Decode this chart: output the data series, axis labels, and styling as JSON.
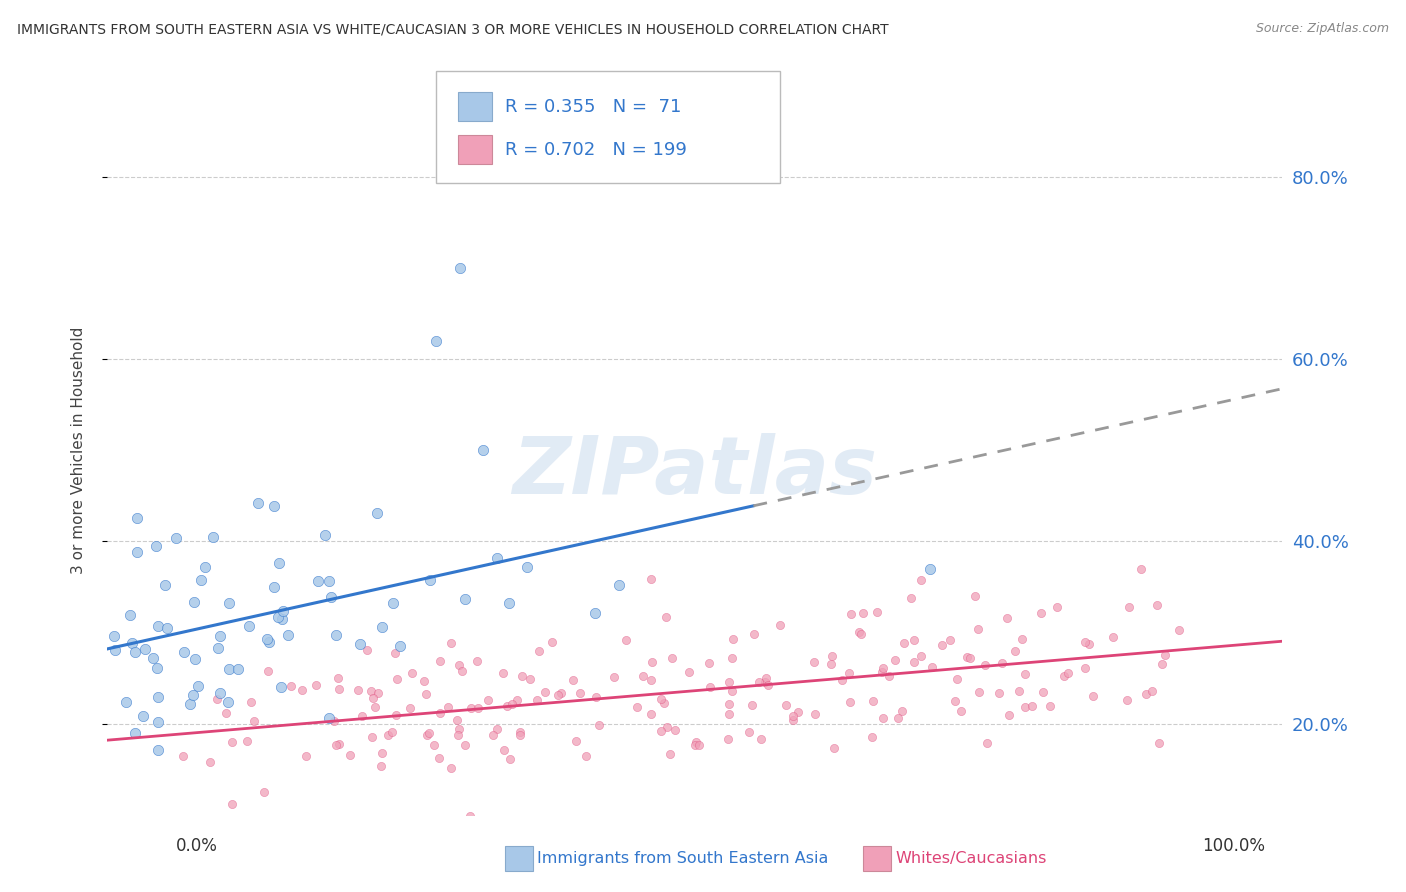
{
  "title": "IMMIGRANTS FROM SOUTH EASTERN ASIA VS WHITE/CAUCASIAN 3 OR MORE VEHICLES IN HOUSEHOLD CORRELATION CHART",
  "source": "Source: ZipAtlas.com",
  "ylabel": "3 or more Vehicles in Household",
  "legend_label1": "Immigrants from South Eastern Asia",
  "legend_label2": "Whites/Caucasians",
  "R1": 0.355,
  "N1": 71,
  "R2": 0.702,
  "N2": 199,
  "color1": "#a8c8e8",
  "color2": "#f0a0b8",
  "line_color1": "#3377cc",
  "line_color2": "#dd4477",
  "dash_color": "#999999",
  "watermark": "ZIPatlas",
  "background_color": "#ffffff",
  "grid_color": "#cccccc",
  "xlim": [
    0,
    100
  ],
  "ylim": [
    10,
    90
  ],
  "ytick_vals": [
    20,
    40,
    60,
    80
  ],
  "blue_x_start": 28.0,
  "blue_x_end": 70.0,
  "blue_y_at0": 28.0,
  "blue_slope": 0.2,
  "pink_y_at0": 19.0,
  "pink_slope": 0.09
}
